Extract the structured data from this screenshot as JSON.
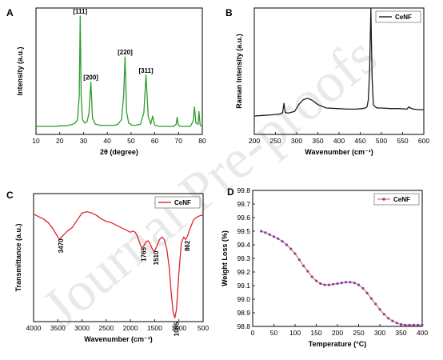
{
  "watermark": "Journal Pre-proofs",
  "chart_data": [
    {
      "panel": "A",
      "type": "line",
      "xlabel": "2θ (degree)",
      "ylabel": "Intensity (a.u.)",
      "xlim": [
        10,
        80
      ],
      "xticks": [
        10,
        20,
        30,
        40,
        50,
        60,
        70,
        80
      ],
      "ylim": [
        0,
        100
      ],
      "yticks_shown": false,
      "color": "#2e9b2e",
      "series": [
        {
          "x": [
            10,
            12,
            14,
            16,
            18,
            20,
            22,
            24,
            25.5,
            26.5,
            27.5,
            28.2,
            28.6,
            29.0,
            29.6,
            30.5,
            31.5,
            32.3,
            33.1,
            33.8,
            35,
            37,
            39,
            41,
            43,
            44.5,
            46,
            46.9,
            47.5,
            48.1,
            49,
            50.5,
            52,
            54,
            55.4,
            56.3,
            57.2,
            58.3,
            59.1,
            60,
            62,
            64,
            66,
            68,
            69.0,
            69.4,
            69.9,
            71,
            73,
            75,
            76.2,
            76.7,
            77.3,
            78.2,
            78.6,
            79.1,
            80
          ],
          "y": [
            3,
            3,
            3,
            3,
            3,
            3.5,
            3.5,
            4,
            5,
            6,
            9,
            30,
            100,
            30,
            9,
            6,
            7,
            15,
            42,
            10,
            5,
            4,
            4,
            4,
            4,
            5,
            9,
            30,
            64,
            16,
            6,
            4,
            4,
            5,
            15,
            48,
            12,
            5,
            12,
            4,
            3,
            3,
            3,
            3,
            5,
            11,
            4,
            3,
            3,
            3,
            8,
            20,
            6,
            5,
            16,
            4,
            3
          ]
        }
      ],
      "annotations": [
        {
          "x": 28.6,
          "y": 100,
          "text": "[111]"
        },
        {
          "x": 33.1,
          "y": 42,
          "text": "[200]"
        },
        {
          "x": 47.5,
          "y": 64,
          "text": "[220]"
        },
        {
          "x": 56.3,
          "y": 48,
          "text": "[311]"
        }
      ]
    },
    {
      "panel": "B",
      "type": "line",
      "xlabel": "Wavenumber (cm⁻¹)",
      "ylabel": "Raman Intensity (a.u.)",
      "xlim": [
        200,
        600
      ],
      "xticks": [
        200,
        250,
        300,
        350,
        400,
        450,
        500,
        550,
        600
      ],
      "ylim": [
        0,
        100
      ],
      "yticks_shown": false,
      "color": "#1a1a1a",
      "legend": "top-right",
      "series": [
        {
          "name": "CeNF",
          "x": [
            200,
            220,
            240,
            255,
            263,
            267,
            270,
            273,
            280,
            295,
            305,
            315,
            325,
            335,
            350,
            370,
            395,
            420,
            440,
            455,
            462,
            466,
            469,
            472,
            475,
            478,
            481,
            485,
            490,
            500,
            520,
            540,
            560,
            565,
            568,
            575,
            590,
            600
          ],
          "y": [
            6,
            6.5,
            7,
            7.5,
            8,
            9,
            17,
            9,
            8.5,
            10,
            16,
            20,
            21.5,
            20,
            16,
            13,
            12.5,
            12,
            12,
            12.5,
            13,
            14,
            20,
            45,
            100,
            40,
            16,
            14,
            13,
            13,
            12.5,
            12.5,
            12,
            14,
            13,
            12,
            11.5,
            11.5
          ]
        }
      ]
    },
    {
      "panel": "C",
      "type": "line",
      "xlabel": "Wavenumber (cm⁻¹)",
      "ylabel": "Transmittance (a.u.)",
      "xlim": [
        4000,
        500
      ],
      "xticks": [
        4000,
        3500,
        3000,
        2500,
        2000,
        1500,
        1000,
        500
      ],
      "ylim": [
        0,
        100
      ],
      "yticks_shown": false,
      "color": "#e0252a",
      "legend": "top-right",
      "series": [
        {
          "name": "CeNF",
          "x": [
            4000,
            3900,
            3800,
            3700,
            3600,
            3500,
            3470,
            3400,
            3300,
            3200,
            3100,
            3000,
            2900,
            2800,
            2700,
            2600,
            2500,
            2400,
            2300,
            2200,
            2100,
            2000,
            1950,
            1900,
            1850,
            1800,
            1765,
            1720,
            1680,
            1640,
            1600,
            1560,
            1510,
            1460,
            1400,
            1350,
            1300,
            1250,
            1200,
            1160,
            1120,
            1085,
            1050,
            1000,
            950,
            900,
            862,
            820,
            780,
            740,
            700,
            650,
            600,
            550,
            500
          ],
          "y": [
            89,
            87,
            85,
            82,
            77,
            70,
            68,
            71,
            75,
            78,
            84,
            90,
            91,
            90,
            88,
            85,
            83,
            82,
            80,
            78,
            76,
            74,
            75,
            74,
            70,
            64,
            61,
            63,
            66,
            67,
            65,
            61,
            58,
            62,
            68,
            70,
            68,
            60,
            45,
            25,
            8,
            3,
            10,
            40,
            65,
            70,
            68,
            71,
            76,
            80,
            84,
            86,
            87,
            88,
            88
          ]
        }
      ],
      "annotations": [
        {
          "x": 3470,
          "y": 68,
          "text": "3470"
        },
        {
          "x": 1765,
          "y": 61,
          "text": "1765"
        },
        {
          "x": 1510,
          "y": 58,
          "text": "1510"
        },
        {
          "x": 1085,
          "y": 3,
          "text": "1085"
        },
        {
          "x": 862,
          "y": 68,
          "text": "862"
        }
      ]
    },
    {
      "panel": "D",
      "type": "line",
      "xlabel": "Temperature (°C)",
      "ylabel": "Weight Loss (%)",
      "xlim": [
        0,
        400
      ],
      "xticks": [
        0,
        50,
        100,
        150,
        200,
        250,
        300,
        350,
        400
      ],
      "ylim": [
        98.8,
        99.8
      ],
      "yticks": [
        98.8,
        98.9,
        99.0,
        99.1,
        99.2,
        99.3,
        99.4,
        99.5,
        99.6,
        99.7,
        99.8
      ],
      "ytick_labels": [
        "98.8",
        "98.9",
        "99.0",
        "99.1",
        "99.2",
        "99.3",
        "99.4",
        "99.5",
        "99.6",
        "99.7",
        "99.8"
      ],
      "color": "#f08a1c",
      "marker_color": "#7a3fd0",
      "legend": "top-right",
      "series": [
        {
          "name": "CeNF",
          "x": [
            20,
            30,
            40,
            50,
            60,
            70,
            80,
            90,
            100,
            110,
            120,
            130,
            140,
            150,
            160,
            170,
            180,
            190,
            200,
            210,
            220,
            230,
            240,
            250,
            260,
            270,
            280,
            290,
            300,
            310,
            320,
            330,
            340,
            350,
            360,
            370,
            380,
            390,
            400
          ],
          "y": [
            99.5,
            99.49,
            99.475,
            99.46,
            99.445,
            99.425,
            99.4,
            99.37,
            99.335,
            99.29,
            99.245,
            99.205,
            99.165,
            99.135,
            99.115,
            99.105,
            99.105,
            99.11,
            99.115,
            99.12,
            99.125,
            99.125,
            99.12,
            99.105,
            99.08,
            99.045,
            99.005,
            98.965,
            98.925,
            98.89,
            98.86,
            98.84,
            98.825,
            98.815,
            98.81,
            98.81,
            98.81,
            98.81,
            98.81
          ]
        }
      ]
    }
  ]
}
